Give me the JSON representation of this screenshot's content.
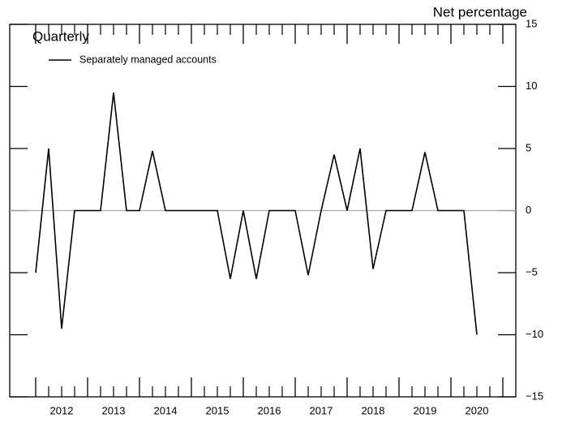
{
  "chart_data": {
    "type": "line",
    "annotation": "Quarterly",
    "y_axis_label": "Net percentage",
    "x": [
      2012,
      2012.25,
      2012.5,
      2012.75,
      2013,
      2013.25,
      2013.5,
      2013.75,
      2014,
      2014.25,
      2014.5,
      2014.75,
      2015,
      2015.25,
      2015.5,
      2015.75,
      2016,
      2016.25,
      2016.5,
      2016.75,
      2017,
      2017.25,
      2017.5,
      2017.75,
      2018,
      2018.25,
      2018.5,
      2018.75,
      2019,
      2019.25,
      2019.5,
      2019.75,
      2020,
      2020.25,
      2020.5
    ],
    "series": [
      {
        "name": "Separately managed accounts",
        "color": "#000000",
        "values": [
          -5,
          5,
          -9.5,
          0,
          0,
          0,
          9.5,
          0,
          0,
          4.8,
          0,
          0,
          0,
          0,
          0,
          -5.5,
          0,
          -5.5,
          0,
          0,
          0,
          -5.2,
          0,
          4.5,
          0,
          5,
          -4.7,
          0,
          0,
          0,
          4.7,
          0,
          0,
          0,
          -10
        ]
      }
    ],
    "xlim": [
      2011.5,
      2021.25
    ],
    "xticks": [
      {
        "value": 2012.5,
        "label": "2012"
      },
      {
        "value": 2013.5,
        "label": "2013"
      },
      {
        "value": 2014.5,
        "label": "2014"
      },
      {
        "value": 2015.5,
        "label": "2015"
      },
      {
        "value": 2016.5,
        "label": "2016"
      },
      {
        "value": 2017.5,
        "label": "2017"
      },
      {
        "value": 2018.5,
        "label": "2018"
      },
      {
        "value": 2019.5,
        "label": "2019"
      },
      {
        "value": 2020.5,
        "label": "2020"
      }
    ],
    "ylim": [
      -15,
      15
    ],
    "yticks": [
      {
        "value": -15,
        "label": "−15"
      },
      {
        "value": -10,
        "label": "−10"
      },
      {
        "value": -5,
        "label": "−5"
      },
      0,
      5,
      10,
      15
    ],
    "zero_line": true
  }
}
